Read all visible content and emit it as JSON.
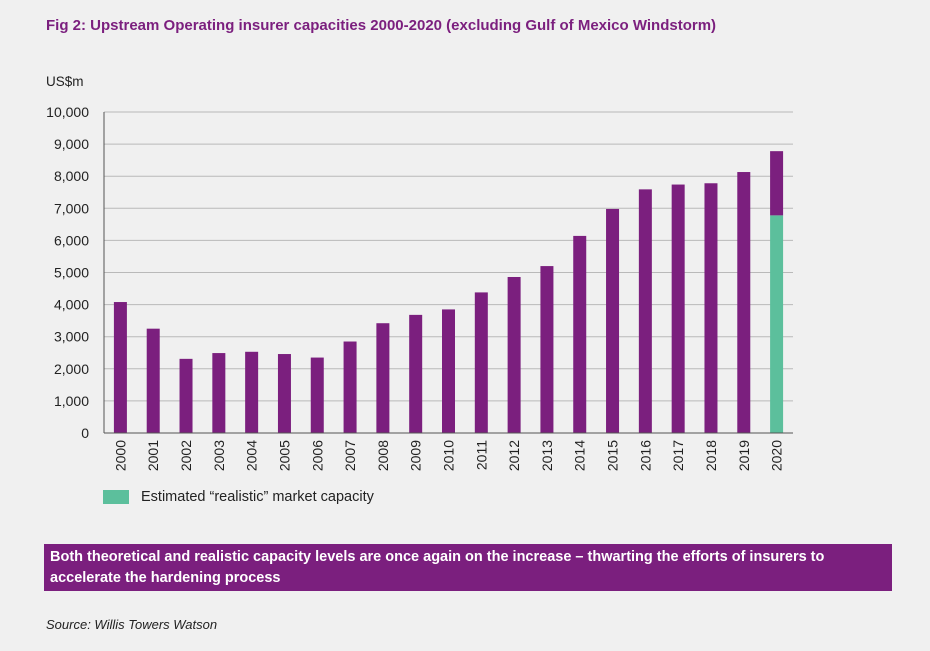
{
  "title": "Fig 2: Upstream Operating insurer capacities 2000-2020 (excluding Gulf of Mexico Windstorm)",
  "callout": "Both theoretical and realistic capacity levels are once again on the increase – thwarting the efforts of insurers to accelerate the hardening process",
  "source": "Source: Willis Towers Watson",
  "colors": {
    "theoretical": "#7b1f7e",
    "realistic": "#5cbf9c",
    "callout_bg": "#7b1f7e",
    "title": "#7b1f7e"
  },
  "chart_data": {
    "type": "bar",
    "stacked": true,
    "title": "",
    "xlabel": "",
    "ylabel": "US$m",
    "ylim": [
      0,
      10000
    ],
    "yticks": [
      0,
      1000,
      2000,
      3000,
      4000,
      5000,
      6000,
      7000,
      8000,
      9000,
      10000
    ],
    "ytick_labels": [
      "0",
      "1,000",
      "2,000",
      "3,000",
      "4,000",
      "5,000",
      "6,000",
      "7,000",
      "8,000",
      "9,000",
      "10,000"
    ],
    "grid": true,
    "legend_position": "bottom-left",
    "categories": [
      "2000",
      "2001",
      "2002",
      "2003",
      "2004",
      "2005",
      "2006",
      "2007",
      "2008",
      "2009",
      "2010",
      "2011",
      "2012",
      "2013",
      "2014",
      "2015",
      "2016",
      "2017",
      "2018",
      "2019",
      "2020"
    ],
    "totals": [
      4080,
      3250,
      2310,
      2490,
      2530,
      2460,
      2350,
      2850,
      3420,
      3680,
      3850,
      4380,
      4860,
      5200,
      6140,
      6980,
      7590,
      7740,
      7780,
      8130,
      8780
    ],
    "series": [
      {
        "name": "Estimated “realistic” market capacity",
        "color": "#5cbf9c",
        "values": [
          0,
          0,
          0,
          0,
          0,
          0,
          0,
          0,
          0,
          0,
          0,
          0,
          0,
          0,
          0,
          0,
          0,
          0,
          0,
          0,
          6780
        ]
      }
    ]
  }
}
